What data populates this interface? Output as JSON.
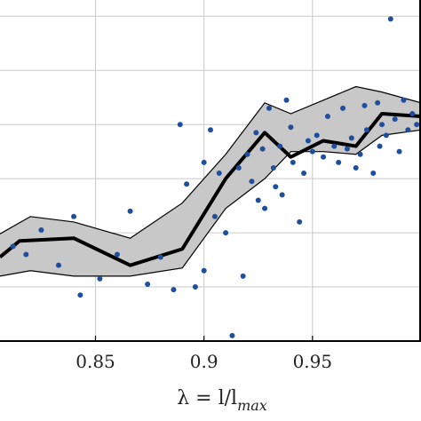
{
  "chart_data": {
    "type": "scatter",
    "xlabel_parts": {
      "pre": "λ = l/l",
      "sub": "max"
    },
    "ylabel": "",
    "title": "",
    "xlim": [
      0.806,
      1.0
    ],
    "ylim": [
      0,
      6.3
    ],
    "x_ticks": [
      0.85,
      0.9,
      0.95
    ],
    "x_tick_labels": [
      "0.85",
      "0.9",
      "0.95"
    ],
    "y_gridlines": [
      1,
      2,
      3,
      4,
      5,
      6
    ],
    "grid": true,
    "colors": {
      "points": "#1f4e9c",
      "mean_line": "#000000",
      "band_fill": "#c8c8c8",
      "band_edge": "#000000",
      "grid": "#c9c9c9",
      "axes": "#000000"
    },
    "mean_line": {
      "x": [
        0.806,
        0.815,
        0.84,
        0.866,
        0.89,
        0.91,
        0.928,
        0.94,
        0.955,
        0.97,
        0.982,
        1.0
      ],
      "y": [
        1.55,
        1.85,
        1.9,
        1.4,
        1.7,
        3.0,
        3.85,
        3.4,
        3.7,
        3.6,
        4.2,
        4.15
      ]
    },
    "band_upper": {
      "x": [
        0.806,
        0.82,
        0.84,
        0.866,
        0.89,
        0.91,
        0.928,
        0.94,
        0.955,
        0.97,
        0.982,
        1.0
      ],
      "y": [
        1.98,
        2.3,
        2.2,
        1.9,
        2.55,
        3.45,
        4.4,
        4.2,
        4.45,
        4.7,
        4.6,
        4.4
      ]
    },
    "band_lower": {
      "x": [
        0.806,
        0.82,
        0.84,
        0.866,
        0.89,
        0.91,
        0.928,
        0.94,
        0.955,
        0.97,
        0.982,
        1.0
      ],
      "y": [
        1.2,
        1.3,
        1.2,
        1.2,
        1.35,
        2.45,
        3.0,
        3.5,
        3.5,
        3.45,
        3.8,
        3.9
      ]
    },
    "points": [
      {
        "x": 0.812,
        "y": 1.75
      },
      {
        "x": 0.818,
        "y": 1.6
      },
      {
        "x": 0.825,
        "y": 2.05
      },
      {
        "x": 0.833,
        "y": 1.4
      },
      {
        "x": 0.84,
        "y": 2.3
      },
      {
        "x": 0.843,
        "y": 0.85
      },
      {
        "x": 0.852,
        "y": 1.15
      },
      {
        "x": 0.86,
        "y": 1.6
      },
      {
        "x": 0.866,
        "y": 2.4
      },
      {
        "x": 0.874,
        "y": 1.05
      },
      {
        "x": 0.88,
        "y": 1.55
      },
      {
        "x": 0.886,
        "y": 0.95
      },
      {
        "x": 0.889,
        "y": 4.0
      },
      {
        "x": 0.892,
        "y": 2.9
      },
      {
        "x": 0.896,
        "y": 1.0
      },
      {
        "x": 0.9,
        "y": 3.3
      },
      {
        "x": 0.9,
        "y": 1.3
      },
      {
        "x": 0.903,
        "y": 3.9
      },
      {
        "x": 0.905,
        "y": 2.3
      },
      {
        "x": 0.907,
        "y": 3.1
      },
      {
        "x": 0.91,
        "y": 2.0
      },
      {
        "x": 0.913,
        "y": 0.1
      },
      {
        "x": 0.916,
        "y": 3.2
      },
      {
        "x": 0.918,
        "y": 1.2
      },
      {
        "x": 0.92,
        "y": 3.45
      },
      {
        "x": 0.922,
        "y": 2.95
      },
      {
        "x": 0.924,
        "y": 3.85
      },
      {
        "x": 0.925,
        "y": 2.6
      },
      {
        "x": 0.927,
        "y": 3.55
      },
      {
        "x": 0.928,
        "y": 2.45
      },
      {
        "x": 0.93,
        "y": 4.3
      },
      {
        "x": 0.932,
        "y": 3.2
      },
      {
        "x": 0.933,
        "y": 2.85
      },
      {
        "x": 0.935,
        "y": 3.6
      },
      {
        "x": 0.936,
        "y": 2.7
      },
      {
        "x": 0.938,
        "y": 4.45
      },
      {
        "x": 0.94,
        "y": 3.95
      },
      {
        "x": 0.941,
        "y": 3.3
      },
      {
        "x": 0.944,
        "y": 2.2
      },
      {
        "x": 0.946,
        "y": 3.1
      },
      {
        "x": 0.948,
        "y": 3.7
      },
      {
        "x": 0.95,
        "y": 3.5
      },
      {
        "x": 0.952,
        "y": 3.8
      },
      {
        "x": 0.955,
        "y": 3.4
      },
      {
        "x": 0.957,
        "y": 4.15
      },
      {
        "x": 0.96,
        "y": 3.6
      },
      {
        "x": 0.962,
        "y": 3.3
      },
      {
        "x": 0.964,
        "y": 4.3
      },
      {
        "x": 0.966,
        "y": 3.55
      },
      {
        "x": 0.968,
        "y": 3.75
      },
      {
        "x": 0.97,
        "y": 3.2
      },
      {
        "x": 0.972,
        "y": 3.45
      },
      {
        "x": 0.974,
        "y": 4.35
      },
      {
        "x": 0.975,
        "y": 3.9
      },
      {
        "x": 0.978,
        "y": 3.1
      },
      {
        "x": 0.98,
        "y": 4.4
      },
      {
        "x": 0.981,
        "y": 3.6
      },
      {
        "x": 0.982,
        "y": 4.0
      },
      {
        "x": 0.984,
        "y": 3.8
      },
      {
        "x": 0.986,
        "y": 5.95
      },
      {
        "x": 0.988,
        "y": 4.1
      },
      {
        "x": 0.99,
        "y": 3.5
      },
      {
        "x": 0.992,
        "y": 4.45
      },
      {
        "x": 0.994,
        "y": 3.9
      },
      {
        "x": 0.996,
        "y": 4.2
      },
      {
        "x": 0.998,
        "y": 4.0
      }
    ]
  }
}
